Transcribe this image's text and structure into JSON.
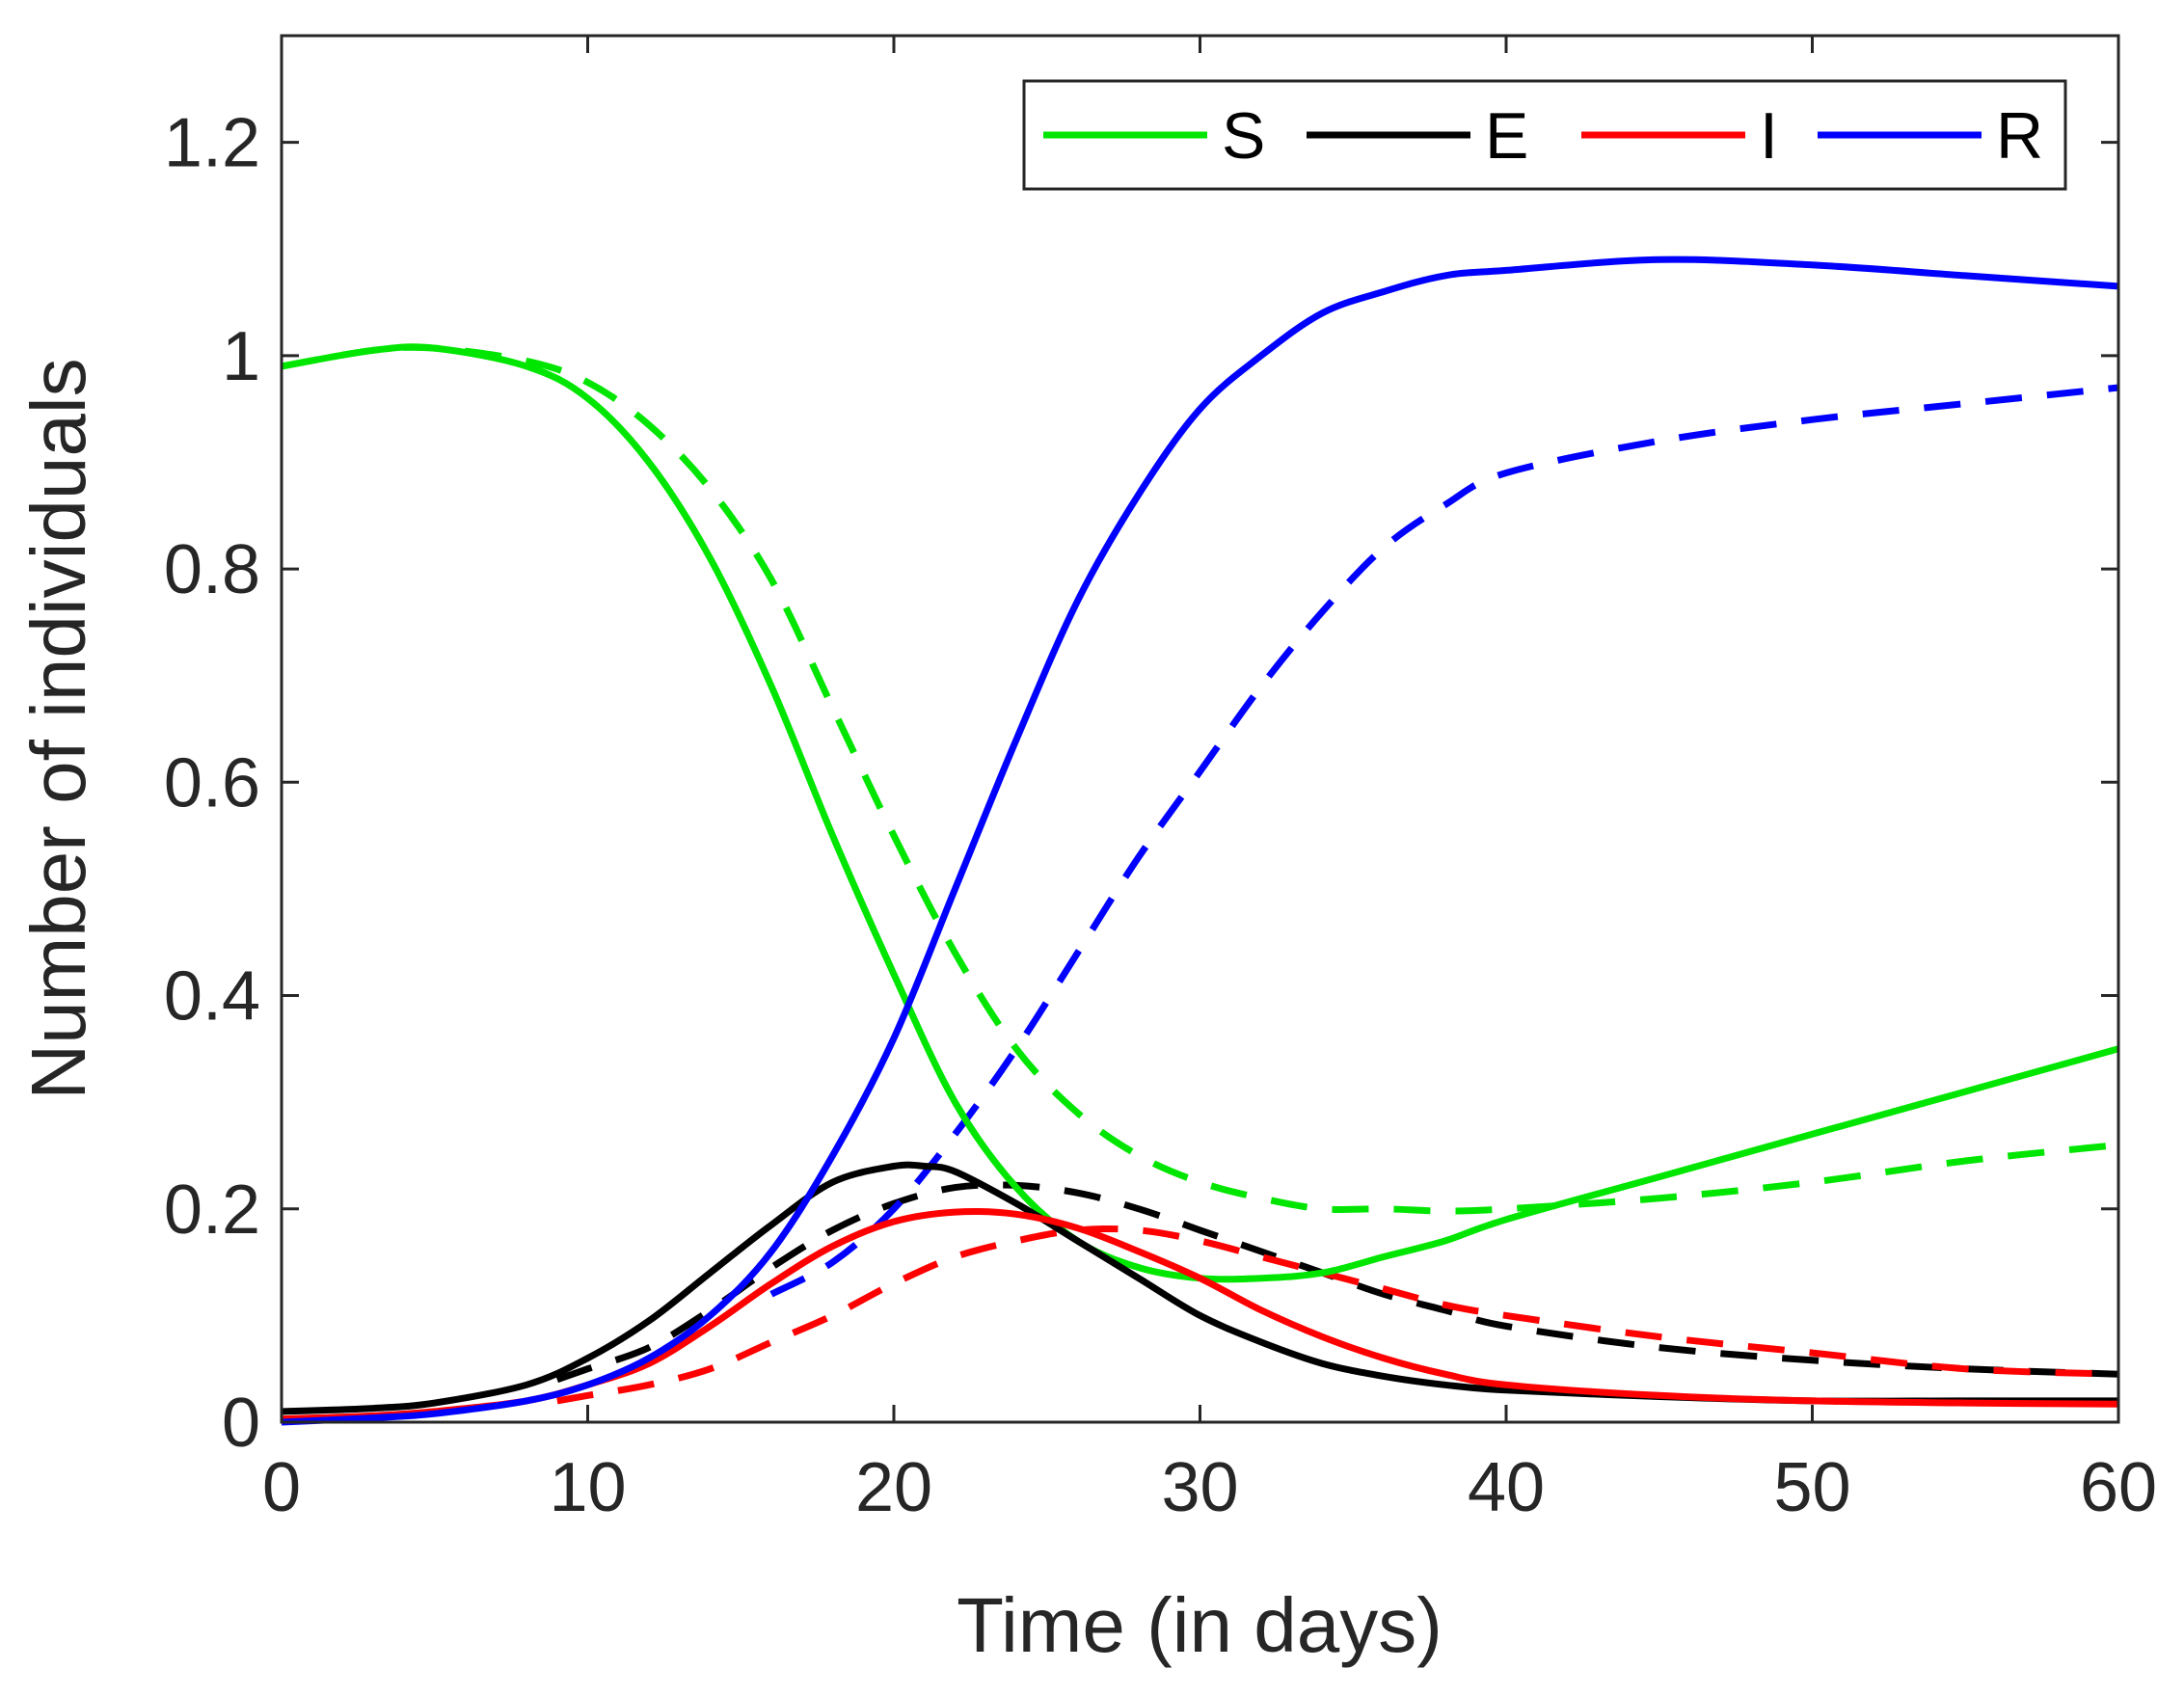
{
  "chart_data": {
    "type": "line",
    "title": "",
    "xlabel": "Time (in days)",
    "ylabel": "Number of individuals",
    "xlim": [
      0,
      60
    ],
    "ylim": [
      0,
      1.3
    ],
    "xticks": [
      0,
      10,
      20,
      30,
      40,
      50,
      60
    ],
    "xtick_labels": [
      "0",
      "10",
      "20",
      "30",
      "40",
      "50",
      "60"
    ],
    "yticks": [
      0,
      0.2,
      0.4,
      0.6,
      0.8,
      1.0,
      1.2
    ],
    "ytick_labels": [
      "0",
      "0.2",
      "0.4",
      "0.6",
      "0.8",
      "1",
      "1.2"
    ],
    "grid": false,
    "legend_position": "top-right",
    "legend": [
      {
        "label": "S",
        "color": "#00e600"
      },
      {
        "label": "E",
        "color": "#000000"
      },
      {
        "label": "I",
        "color": "#ff0000"
      },
      {
        "label": "R",
        "color": "#0000ff"
      }
    ],
    "series": [
      {
        "name": "S",
        "style": "solid",
        "color": "#00e600",
        "x": [
          0,
          3,
          5,
          8,
          10,
          12,
          14,
          16,
          18,
          20,
          22,
          24,
          26,
          28,
          30,
          32,
          34,
          36,
          38,
          40,
          45,
          50,
          55,
          60
        ],
        "y": [
          0.99,
          1.005,
          1.007,
          0.99,
          0.96,
          0.9,
          0.81,
          0.69,
          0.55,
          0.42,
          0.3,
          0.22,
          0.17,
          0.145,
          0.135,
          0.135,
          0.14,
          0.155,
          0.17,
          0.19,
          0.23,
          0.27,
          0.31,
          0.35
        ]
      },
      {
        "name": "E",
        "style": "solid",
        "color": "#000000",
        "x": [
          0,
          3,
          5,
          8,
          10,
          12,
          14,
          16,
          18,
          20,
          21,
          22,
          24,
          26,
          28,
          30,
          32,
          34,
          36,
          38,
          40,
          45,
          50,
          55,
          60
        ],
        "y": [
          0.01,
          0.013,
          0.018,
          0.035,
          0.06,
          0.095,
          0.14,
          0.185,
          0.225,
          0.24,
          0.24,
          0.235,
          0.205,
          0.17,
          0.135,
          0.1,
          0.075,
          0.055,
          0.043,
          0.035,
          0.03,
          0.024,
          0.02,
          0.02,
          0.02
        ]
      },
      {
        "name": "I",
        "style": "solid",
        "color": "#ff0000",
        "x": [
          0,
          3,
          5,
          8,
          10,
          12,
          14,
          16,
          18,
          20,
          22,
          24,
          26,
          28,
          30,
          32,
          34,
          36,
          38,
          40,
          45,
          50,
          55,
          60
        ],
        "y": [
          0.003,
          0.006,
          0.01,
          0.02,
          0.035,
          0.055,
          0.09,
          0.13,
          0.165,
          0.188,
          0.197,
          0.195,
          0.182,
          0.16,
          0.135,
          0.105,
          0.08,
          0.06,
          0.045,
          0.035,
          0.025,
          0.02,
          0.018,
          0.017
        ]
      },
      {
        "name": "R",
        "style": "solid",
        "color": "#0000ff",
        "x": [
          0,
          3,
          5,
          8,
          10,
          12,
          14,
          16,
          18,
          20,
          22,
          24,
          26,
          28,
          30,
          32,
          34,
          36,
          38,
          40,
          45,
          50,
          55,
          60
        ],
        "y": [
          0.0,
          0.004,
          0.008,
          0.02,
          0.035,
          0.06,
          0.1,
          0.16,
          0.25,
          0.36,
          0.5,
          0.64,
          0.77,
          0.87,
          0.95,
          1.0,
          1.04,
          1.06,
          1.075,
          1.08,
          1.09,
          1.085,
          1.075,
          1.065
        ]
      },
      {
        "name": "S (dashed)",
        "style": "dashed",
        "color": "#00e600",
        "x": [
          0,
          3,
          5,
          8,
          10,
          12,
          14,
          16,
          18,
          20,
          22,
          24,
          26,
          28,
          30,
          32,
          34,
          36,
          38,
          40,
          45,
          50,
          55,
          60
        ],
        "y": [
          0.99,
          1.005,
          1.007,
          0.995,
          0.975,
          0.935,
          0.875,
          0.79,
          0.67,
          0.55,
          0.44,
          0.35,
          0.29,
          0.25,
          0.225,
          0.21,
          0.2,
          0.2,
          0.198,
          0.2,
          0.21,
          0.225,
          0.245,
          0.26
        ]
      },
      {
        "name": "E (dashed)",
        "style": "dashed",
        "color": "#000000",
        "x": [
          9,
          10,
          12,
          14,
          16,
          18,
          20,
          22,
          24,
          26,
          28,
          30,
          32,
          34,
          36,
          38,
          40,
          45,
          50,
          55,
          60
        ],
        "y": [
          0.04,
          0.05,
          0.07,
          0.105,
          0.145,
          0.18,
          0.205,
          0.22,
          0.222,
          0.215,
          0.2,
          0.18,
          0.16,
          0.14,
          0.12,
          0.105,
          0.09,
          0.07,
          0.058,
          0.05,
          0.045
        ]
      },
      {
        "name": "I (dashed)",
        "style": "dashed",
        "color": "#ff0000",
        "x": [
          9,
          10,
          12,
          14,
          16,
          18,
          20,
          22,
          24,
          26,
          28,
          30,
          32,
          34,
          36,
          38,
          40,
          45,
          50,
          55,
          60
        ],
        "y": [
          0.02,
          0.025,
          0.035,
          0.05,
          0.075,
          0.1,
          0.13,
          0.155,
          0.17,
          0.18,
          0.18,
          0.17,
          0.155,
          0.14,
          0.125,
          0.11,
          0.1,
          0.08,
          0.065,
          0.05,
          0.045
        ]
      },
      {
        "name": "R (dashed)",
        "style": "dashed",
        "color": "#0000ff",
        "x": [
          16,
          18,
          20,
          22,
          24,
          26,
          28,
          30,
          32,
          34,
          36,
          38,
          40,
          45,
          50,
          55,
          60
        ],
        "y": [
          0.12,
          0.15,
          0.2,
          0.27,
          0.35,
          0.44,
          0.53,
          0.61,
          0.69,
          0.76,
          0.82,
          0.86,
          0.89,
          0.92,
          0.94,
          0.955,
          0.97
        ]
      }
    ]
  }
}
